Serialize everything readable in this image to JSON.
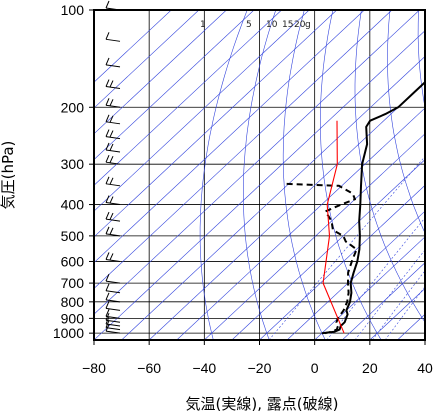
{
  "chart_data": {
    "type": "line",
    "chart_kind": "Skew-T log-P diagram",
    "xlabel": "気温(実線), 露点(破線)",
    "ylabel": "気圧(hPa)",
    "x_axis": {
      "min": -80,
      "max": 40,
      "ticks": [
        -80,
        -60,
        -40,
        -20,
        0,
        20,
        40
      ]
    },
    "y_axis": {
      "scale": "log",
      "reversed": true,
      "min": 100,
      "max": 1050,
      "ticks": [
        100,
        200,
        300,
        400,
        500,
        600,
        700,
        800,
        900,
        1000
      ]
    },
    "mixing_ratio_labels": [
      "1",
      "5",
      "10",
      "15",
      "20",
      "g"
    ],
    "grid": true,
    "series": [
      {
        "role": "temperature",
        "style": "solid",
        "color": "#000000",
        "points": [
          [
            1000,
            0
          ],
          [
            990,
            4
          ],
          [
            975,
            5
          ],
          [
            950,
            4
          ],
          [
            925,
            4
          ],
          [
            900,
            3
          ],
          [
            875,
            2
          ],
          [
            850,
            0
          ],
          [
            800,
            -2
          ],
          [
            750,
            -5
          ],
          [
            700,
            -9
          ],
          [
            650,
            -12
          ],
          [
            600,
            -15
          ],
          [
            550,
            -19
          ],
          [
            500,
            -24
          ],
          [
            450,
            -30
          ],
          [
            400,
            -36
          ],
          [
            350,
            -43
          ],
          [
            300,
            -51
          ],
          [
            260,
            -57
          ],
          [
            230,
            -64
          ],
          [
            220,
            -65
          ],
          [
            210,
            -62
          ],
          [
            200,
            -60
          ],
          [
            180,
            -60
          ],
          [
            160,
            -60
          ],
          [
            140,
            -62
          ],
          [
            120,
            -63
          ],
          [
            100,
            -65
          ]
        ]
      },
      {
        "role": "dewpoint",
        "style": "dashed",
        "color": "#000000",
        "points": [
          [
            1000,
            1
          ],
          [
            990,
            3
          ],
          [
            975,
            4
          ],
          [
            950,
            3
          ],
          [
            925,
            1
          ],
          [
            900,
            0
          ],
          [
            850,
            -1
          ],
          [
            800,
            -3
          ],
          [
            750,
            -6
          ],
          [
            700,
            -10
          ],
          [
            650,
            -14
          ],
          [
            600,
            -17
          ],
          [
            550,
            -20
          ],
          [
            520,
            -27
          ],
          [
            500,
            -30
          ],
          [
            480,
            -36
          ],
          [
            450,
            -40
          ],
          [
            420,
            -46
          ],
          [
            400,
            -43
          ],
          [
            385,
            -40
          ],
          [
            370,
            -43
          ],
          [
            350,
            -51
          ],
          [
            345,
            -72
          ]
        ]
      },
      {
        "role": "parcel-path",
        "style": "solid",
        "color": "#ff0000",
        "points": [
          [
            1000,
            8
          ],
          [
            700,
            -19
          ],
          [
            500,
            -35
          ],
          [
            400,
            -48
          ],
          [
            300,
            -60
          ],
          [
            220,
            -77
          ]
        ]
      }
    ],
    "wind_barbs_pressures": [
      1000,
      975,
      950,
      925,
      900,
      850,
      800,
      750,
      700,
      600,
      500,
      450,
      400,
      350,
      300,
      275,
      250,
      225,
      200,
      175,
      150,
      125,
      100
    ]
  }
}
